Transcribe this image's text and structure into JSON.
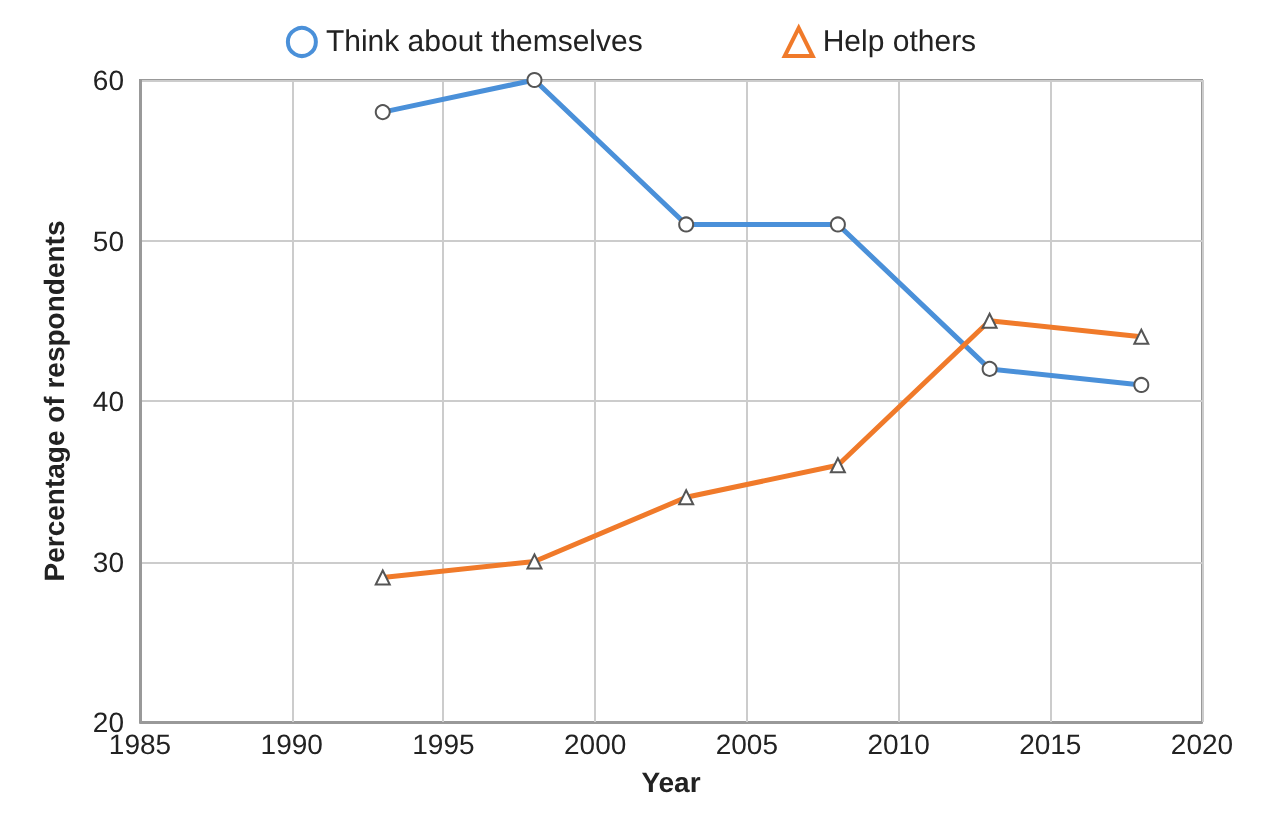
{
  "chart_data": {
    "type": "line",
    "xlabel": "Year",
    "ylabel": "Percentage of respondents",
    "x": [
      1993,
      1998,
      2003,
      2008,
      2013,
      2018
    ],
    "series": [
      {
        "name": "Think about themselves",
        "color": "#4a90d9",
        "marker": "circle",
        "values": [
          58,
          60,
          51,
          51,
          42,
          41
        ]
      },
      {
        "name": "Help others",
        "color": "#f07a2a",
        "marker": "triangle",
        "values": [
          29,
          30,
          34,
          36,
          45,
          44
        ]
      }
    ],
    "xlim": [
      1985,
      2020
    ],
    "xticks": [
      1985,
      1990,
      1995,
      2000,
      2005,
      2010,
      2015,
      2020
    ],
    "ylim": [
      20,
      60
    ],
    "yticks": [
      20,
      30,
      40,
      50,
      60
    ],
    "grid": true,
    "legend": "top"
  }
}
